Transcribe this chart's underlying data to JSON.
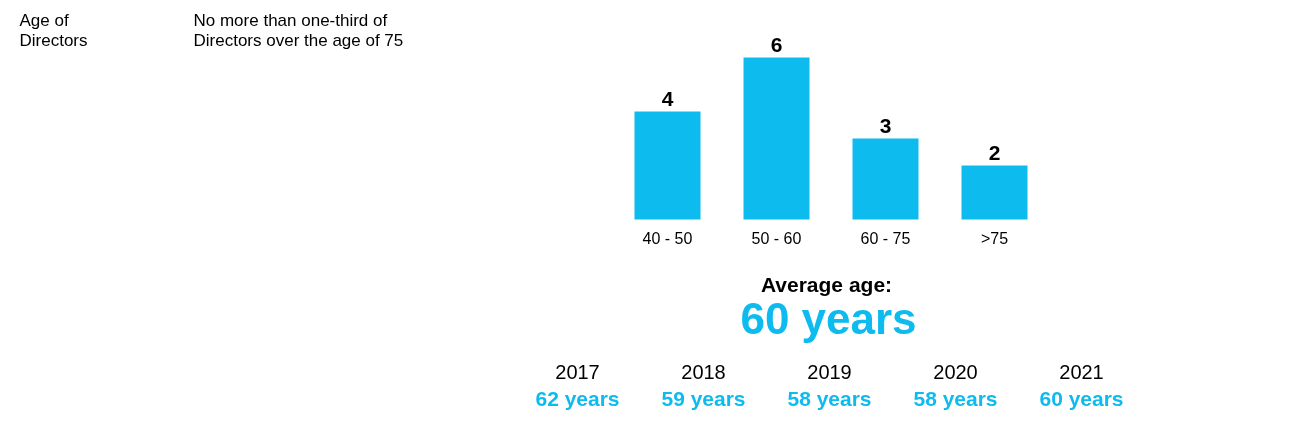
{
  "chart_data": {
    "type": "bar",
    "title": "Age of Directors",
    "subtitle": "No more than one-third of Directors over the age of 75",
    "categories": [
      "40 - 50",
      "50 - 60",
      "60 - 75",
      ">75"
    ],
    "values": [
      4,
      6,
      3,
      2
    ],
    "color": "#0ebbef",
    "data_labels": true,
    "annotations": [
      "Average age:",
      "60 years",
      "2017",
      "62 years",
      "2018",
      "59 years",
      "2019",
      "58 years",
      "2020",
      "58 years",
      "2021",
      "60 years"
    ]
  }
}
